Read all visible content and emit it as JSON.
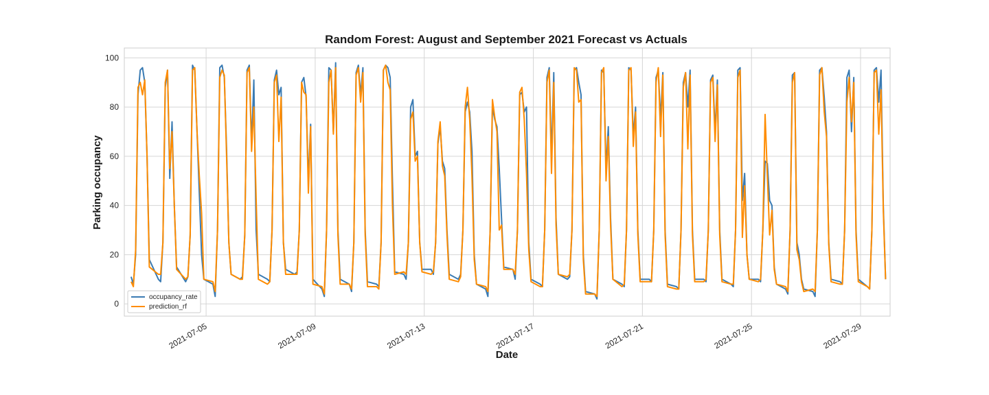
{
  "chart_data": {
    "type": "line",
    "title": "Random Forest: August and September 2021 Forecast vs Actuals",
    "xlabel": "Date",
    "ylabel": "Parking occupancy",
    "x_tick_labels": [
      "2021-07-05",
      "2021-07-09",
      "2021-07-13",
      "2021-07-17",
      "2021-07-21",
      "2021-07-25",
      "2021-07-29"
    ],
    "y_ticks": [
      0,
      20,
      40,
      60,
      80,
      100
    ],
    "xlim": [
      "2021-07-02",
      "2021-07-30 02:00"
    ],
    "ylim": [
      -5,
      104
    ],
    "grid": true,
    "legend_position": "lower-left",
    "sampling": "daily occupancy cycle, approx. 06:00 to 22:00 in 2-hour steps, one peak per day",
    "series": [
      {
        "name": "occupancy_rate",
        "color": "#3a7bb3",
        "daily": [
          {
            "date": "2021-07-02",
            "values": [
              11,
              8,
              20,
              85,
              95,
              96,
              90,
              60,
              18
            ]
          },
          {
            "date": "2021-07-03",
            "values": [
              10,
              9,
              25,
              88,
              95,
              51,
              74,
              40,
              15
            ]
          },
          {
            "date": "2021-07-04",
            "values": [
              9,
              11,
              28,
              97,
              95,
              70,
              45,
              20,
              10
            ]
          },
          {
            "date": "2021-07-05",
            "values": [
              8,
              3,
              30,
              96,
              97,
              92,
              63,
              25,
              12
            ]
          },
          {
            "date": "2021-07-06",
            "values": [
              10,
              11,
              28,
              95,
              97,
              65,
              91,
              30,
              12
            ]
          },
          {
            "date": "2021-07-07",
            "values": [
              10,
              9,
              30,
              91,
              95,
              85,
              88,
              25,
              14
            ]
          },
          {
            "date": "2021-07-08",
            "values": [
              12,
              13,
              30,
              90,
              92,
              84,
              50,
              73,
              10
            ]
          },
          {
            "date": "2021-07-09",
            "values": [
              6,
              3,
              30,
              96,
              95,
              70,
              98,
              30,
              10
            ]
          },
          {
            "date": "2021-07-10",
            "values": [
              8,
              5,
              25,
              94,
              97,
              85,
              96,
              30,
              9
            ]
          },
          {
            "date": "2021-07-11",
            "values": [
              8,
              7,
              25,
              95,
              97,
              96,
              92,
              50,
              13
            ]
          },
          {
            "date": "2021-07-12",
            "values": [
              12,
              10,
              25,
              80,
              83,
              60,
              62,
              25,
              14
            ]
          },
          {
            "date": "2021-07-13",
            "values": [
              14,
              12,
              25,
              65,
              72,
              58,
              55,
              30,
              12
            ]
          },
          {
            "date": "2021-07-14",
            "values": [
              10,
              12,
              30,
              78,
              82,
              78,
              62,
              20,
              8
            ]
          },
          {
            "date": "2021-07-15",
            "values": [
              6,
              3,
              30,
              80,
              75,
              72,
              55,
              35,
              15
            ]
          },
          {
            "date": "2021-07-16",
            "values": [
              14,
              10,
              30,
              85,
              86,
              78,
              80,
              25,
              10
            ]
          },
          {
            "date": "2021-07-17",
            "values": [
              8,
              7,
              30,
              92,
              96,
              60,
              94,
              35,
              12
            ]
          },
          {
            "date": "2021-07-18",
            "values": [
              10,
              11,
              30,
              95,
              96,
              90,
              85,
              20,
              5
            ]
          },
          {
            "date": "2021-07-19",
            "values": [
              4,
              2,
              30,
              95,
              94,
              55,
              72,
              35,
              10
            ]
          },
          {
            "date": "2021-07-20",
            "values": [
              8,
              7,
              30,
              96,
              95,
              68,
              80,
              30,
              10
            ]
          },
          {
            "date": "2021-07-21",
            "values": [
              10,
              9,
              30,
              92,
              95,
              75,
              94,
              30,
              8
            ]
          },
          {
            "date": "2021-07-22",
            "values": [
              7,
              6,
              30,
              90,
              94,
              80,
              95,
              30,
              10
            ]
          },
          {
            "date": "2021-07-23",
            "values": [
              10,
              9,
              30,
              91,
              93,
              70,
              91,
              30,
              10
            ]
          },
          {
            "date": "2021-07-24",
            "values": [
              8,
              7,
              30,
              95,
              96,
              42,
              53,
              20,
              10
            ]
          },
          {
            "date": "2021-07-25",
            "values": [
              10,
              9,
              30,
              58,
              57,
              42,
              40,
              15,
              8
            ]
          },
          {
            "date": "2021-07-26",
            "values": [
              6,
              4,
              30,
              93,
              94,
              25,
              20,
              10,
              6
            ]
          },
          {
            "date": "2021-07-27",
            "values": [
              5,
              3,
              30,
              95,
              96,
              84,
              70,
              25,
              10
            ]
          },
          {
            "date": "2021-07-28",
            "values": [
              9,
              8,
              30,
              92,
              95,
              70,
              92,
              30,
              10
            ]
          },
          {
            "date": "2021-07-29",
            "values": [
              7,
              6,
              30,
              95,
              96,
              82,
              95,
              40,
              10
            ]
          }
        ]
      },
      {
        "name": "prediction_rf",
        "color": "#ff8c00",
        "daily": [
          {
            "date": "2021-07-02",
            "values": [
              9,
              7,
              22,
              88,
              90,
              85,
              91,
              60,
              15
            ]
          },
          {
            "date": "2021-07-03",
            "values": [
              12,
              12,
              25,
              90,
              95,
              55,
              70,
              40,
              14
            ]
          },
          {
            "date": "2021-07-04",
            "values": [
              10,
              11,
              28,
              95,
              96,
              70,
              52,
              37,
              10
            ]
          },
          {
            "date": "2021-07-05",
            "values": [
              9,
              5,
              30,
              92,
              95,
              93,
              60,
              25,
              12
            ]
          },
          {
            "date": "2021-07-06",
            "values": [
              10,
              10,
              28,
              94,
              96,
              62,
              80,
              43,
              10
            ]
          },
          {
            "date": "2021-07-07",
            "values": [
              8,
              9,
              30,
              90,
              93,
              66,
              84,
              25,
              12
            ]
          },
          {
            "date": "2021-07-08",
            "values": [
              12,
              12,
              30,
              90,
              86,
              85,
              45,
              72,
              8
            ]
          },
          {
            "date": "2021-07-09",
            "values": [
              7,
              4,
              30,
              90,
              95,
              69,
              96,
              28,
              8
            ]
          },
          {
            "date": "2021-07-10",
            "values": [
              8,
              6,
              25,
              93,
              96,
              82,
              94,
              28,
              7
            ]
          },
          {
            "date": "2021-07-11",
            "values": [
              7,
              6,
              25,
              95,
              97,
              90,
              87,
              40,
              12
            ]
          },
          {
            "date": "2021-07-12",
            "values": [
              13,
              12,
              25,
              75,
              78,
              58,
              60,
              25,
              13
            ]
          },
          {
            "date": "2021-07-13",
            "values": [
              12,
              13,
              25,
              66,
              74,
              56,
              52,
              28,
              10
            ]
          },
          {
            "date": "2021-07-14",
            "values": [
              9,
              11,
              30,
              80,
              88,
              75,
              52,
              18,
              8
            ]
          },
          {
            "date": "2021-07-15",
            "values": [
              7,
              5,
              30,
              83,
              76,
              70,
              30,
              32,
              14
            ]
          },
          {
            "date": "2021-07-16",
            "values": [
              14,
              12,
              30,
              86,
              88,
              75,
              53,
              22,
              9
            ]
          },
          {
            "date": "2021-07-17",
            "values": [
              7,
              7,
              30,
              90,
              95,
              53,
              90,
              32,
              12
            ]
          },
          {
            "date": "2021-07-18",
            "values": [
              11,
              12,
              30,
              96,
              95,
              82,
              83,
              18,
              4
            ]
          },
          {
            "date": "2021-07-19",
            "values": [
              4,
              3,
              30,
              94,
              96,
              50,
              68,
              32,
              10
            ]
          },
          {
            "date": "2021-07-20",
            "values": [
              7,
              8,
              30,
              95,
              96,
              64,
              78,
              28,
              9
            ]
          },
          {
            "date": "2021-07-21",
            "values": [
              9,
              9,
              30,
              90,
              96,
              68,
              93,
              28,
              7
            ]
          },
          {
            "date": "2021-07-22",
            "values": [
              6,
              6,
              30,
              88,
              94,
              63,
              93,
              28,
              9
            ]
          },
          {
            "date": "2021-07-23",
            "values": [
              9,
              10,
              30,
              90,
              92,
              66,
              89,
              28,
              9
            ]
          },
          {
            "date": "2021-07-24",
            "values": [
              8,
              8,
              30,
              92,
              95,
              27,
              48,
              20,
              10
            ]
          },
          {
            "date": "2021-07-25",
            "values": [
              9,
              10,
              30,
              77,
              52,
              28,
              38,
              14,
              8
            ]
          },
          {
            "date": "2021-07-26",
            "values": [
              7,
              5,
              30,
              90,
              94,
              22,
              18,
              9,
              5
            ]
          },
          {
            "date": "2021-07-27",
            "values": [
              6,
              5,
              30,
              93,
              96,
              78,
              68,
              24,
              9
            ]
          },
          {
            "date": "2021-07-28",
            "values": [
              8,
              8,
              30,
              82,
              92,
              74,
              90,
              28,
              9
            ]
          },
          {
            "date": "2021-07-29",
            "values": [
              7,
              6,
              30,
              94,
              95,
              69,
              87,
              38,
              10
            ]
          }
        ]
      }
    ]
  }
}
